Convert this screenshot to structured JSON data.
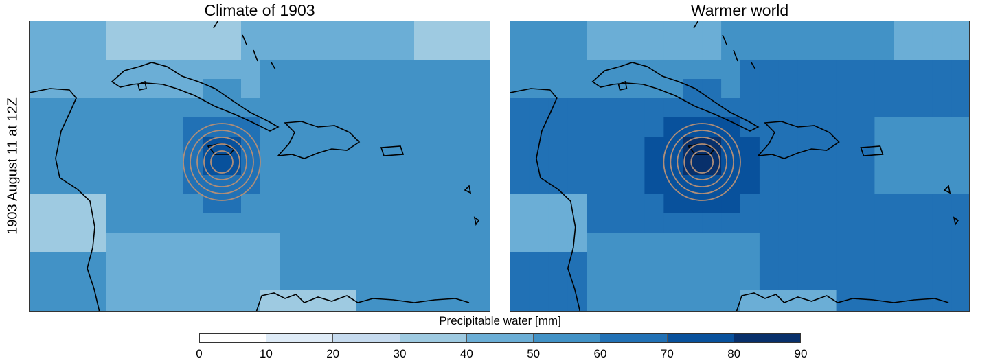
{
  "panels": [
    {
      "title": "Climate of 1903",
      "scenario": "1903"
    },
    {
      "title": "Warmer world",
      "scenario": "warm"
    }
  ],
  "row_label": "1903 August 11 at 12Z",
  "colorbar": {
    "title": "Precipitable water [mm]",
    "ticks": [
      "0",
      "10",
      "20",
      "30",
      "40",
      "50",
      "60",
      "70",
      "80",
      "90"
    ],
    "colors": [
      "#ffffff",
      "#deebf7",
      "#c6dbef",
      "#9ecae1",
      "#6baed6",
      "#4292c6",
      "#2171b5",
      "#08519c",
      "#08306b"
    ]
  },
  "map_style": {
    "coastline_color": "#000000",
    "contour_color": "#b08e78"
  }
}
